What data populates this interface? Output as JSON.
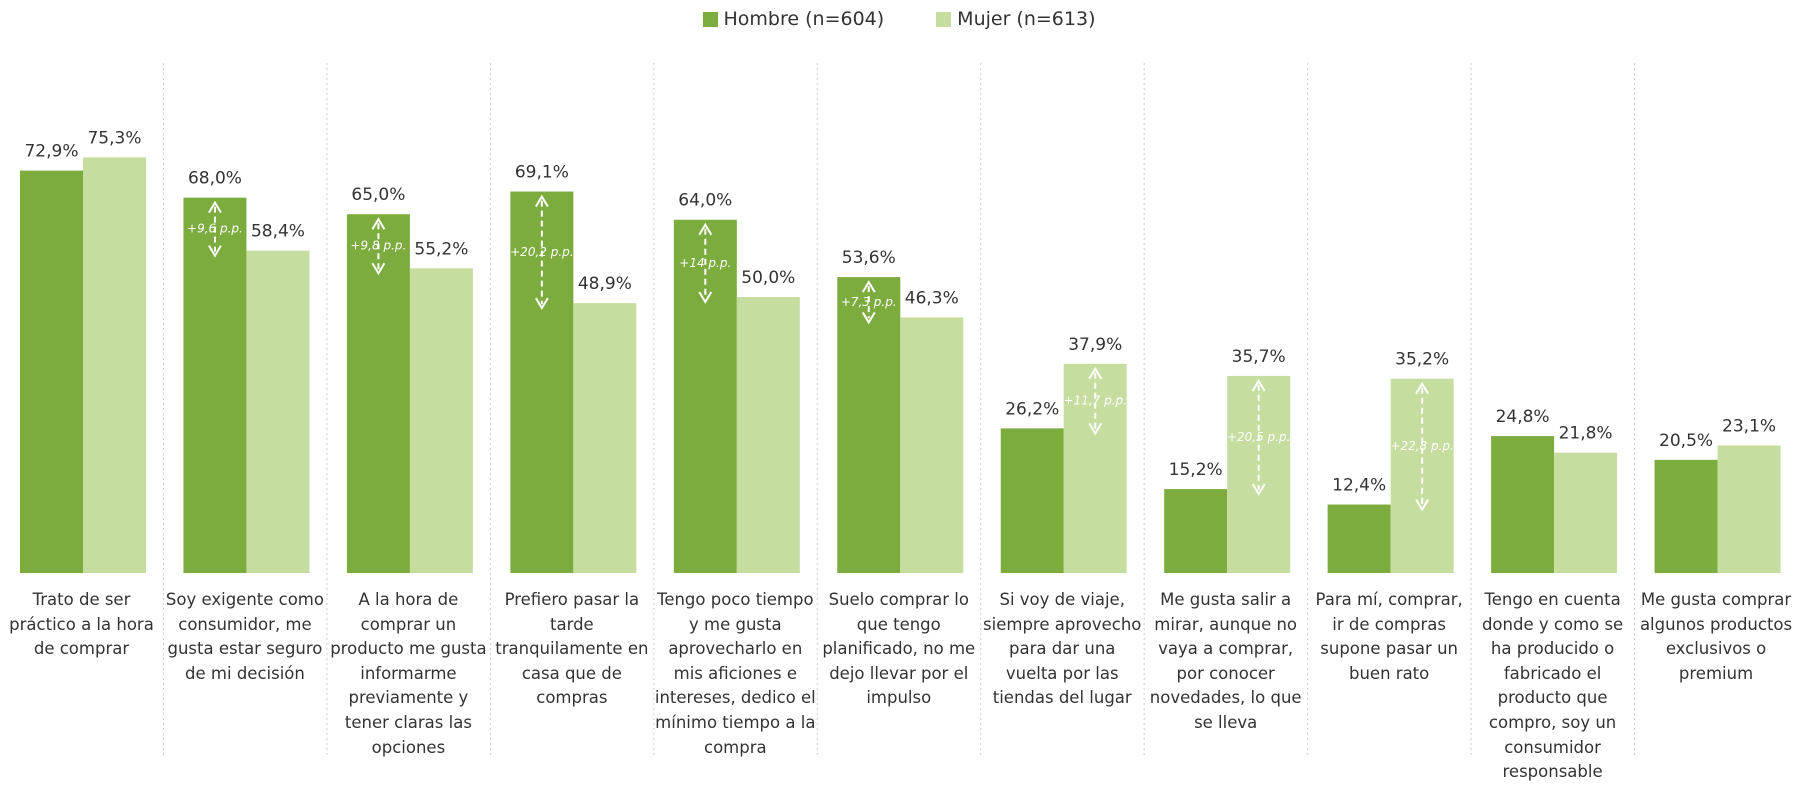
{
  "chart_data": {
    "type": "bar",
    "categories": [
      "Trato de ser práctico a la hora de comprar",
      "Soy exigente como consumidor, me gusta estar seguro de mi decisión",
      "A la hora de comprar un producto me gusta informarme previamente y tener claras las opciones",
      "Prefiero pasar la tarde tranquilamente en casa que de compras",
      "Tengo poco tiempo y me gusta aprovecharlo en mis aficiones e intereses, dedico el mínimo tiempo a la compra",
      "Suelo comprar lo que tengo planificado, no me dejo llevar por el impulso",
      "Si voy de viaje, siempre aprovecho para dar una vuelta por las tiendas del lugar",
      "Me gusta salir a mirar, aunque no vaya a comprar, por conocer novedades, lo que se lleva",
      "Para mí, comprar, ir de compras supone pasar un buen rato",
      "Tengo en cuenta donde y como se ha producido o fabricado el producto que compro, soy un consumidor responsable",
      "Me gusta comprar algunos productos exclusivos  o premium"
    ],
    "series": [
      {
        "name": "Hombre (n=604)",
        "color": "#7cac3e",
        "values": [
          72.9,
          68.0,
          65.0,
          69.1,
          64.0,
          53.6,
          26.2,
          15.2,
          12.4,
          24.8,
          20.5
        ],
        "value_labels": [
          "72,9%",
          "68,0%",
          "65,0%",
          "69,1%",
          "64,0%",
          "53,6%",
          "26,2%",
          "15,2%",
          "12,4%",
          "24,8%",
          "20,5%"
        ]
      },
      {
        "name": "Mujer (n=613)",
        "color": "#c5dea0",
        "values": [
          75.3,
          58.4,
          55.2,
          48.9,
          50.0,
          46.3,
          37.9,
          35.7,
          35.2,
          21.8,
          23.1
        ],
        "value_labels": [
          "75,3%",
          "58,4%",
          "55,2%",
          "48,9%",
          "50,0%",
          "46,3%",
          "37,9%",
          "35,7%",
          "35,2%",
          "21,8%",
          "23,1%"
        ]
      }
    ],
    "annotations": [
      null,
      "+9,6 p.p.",
      "+9,8 p.p.",
      "+20,2 p.p.",
      "+14 p.p.",
      "+7,3 p.p.",
      "+11,7 p.p.",
      "+20,5 p.p.",
      "+22,8 p.p.",
      null,
      null
    ]
  }
}
